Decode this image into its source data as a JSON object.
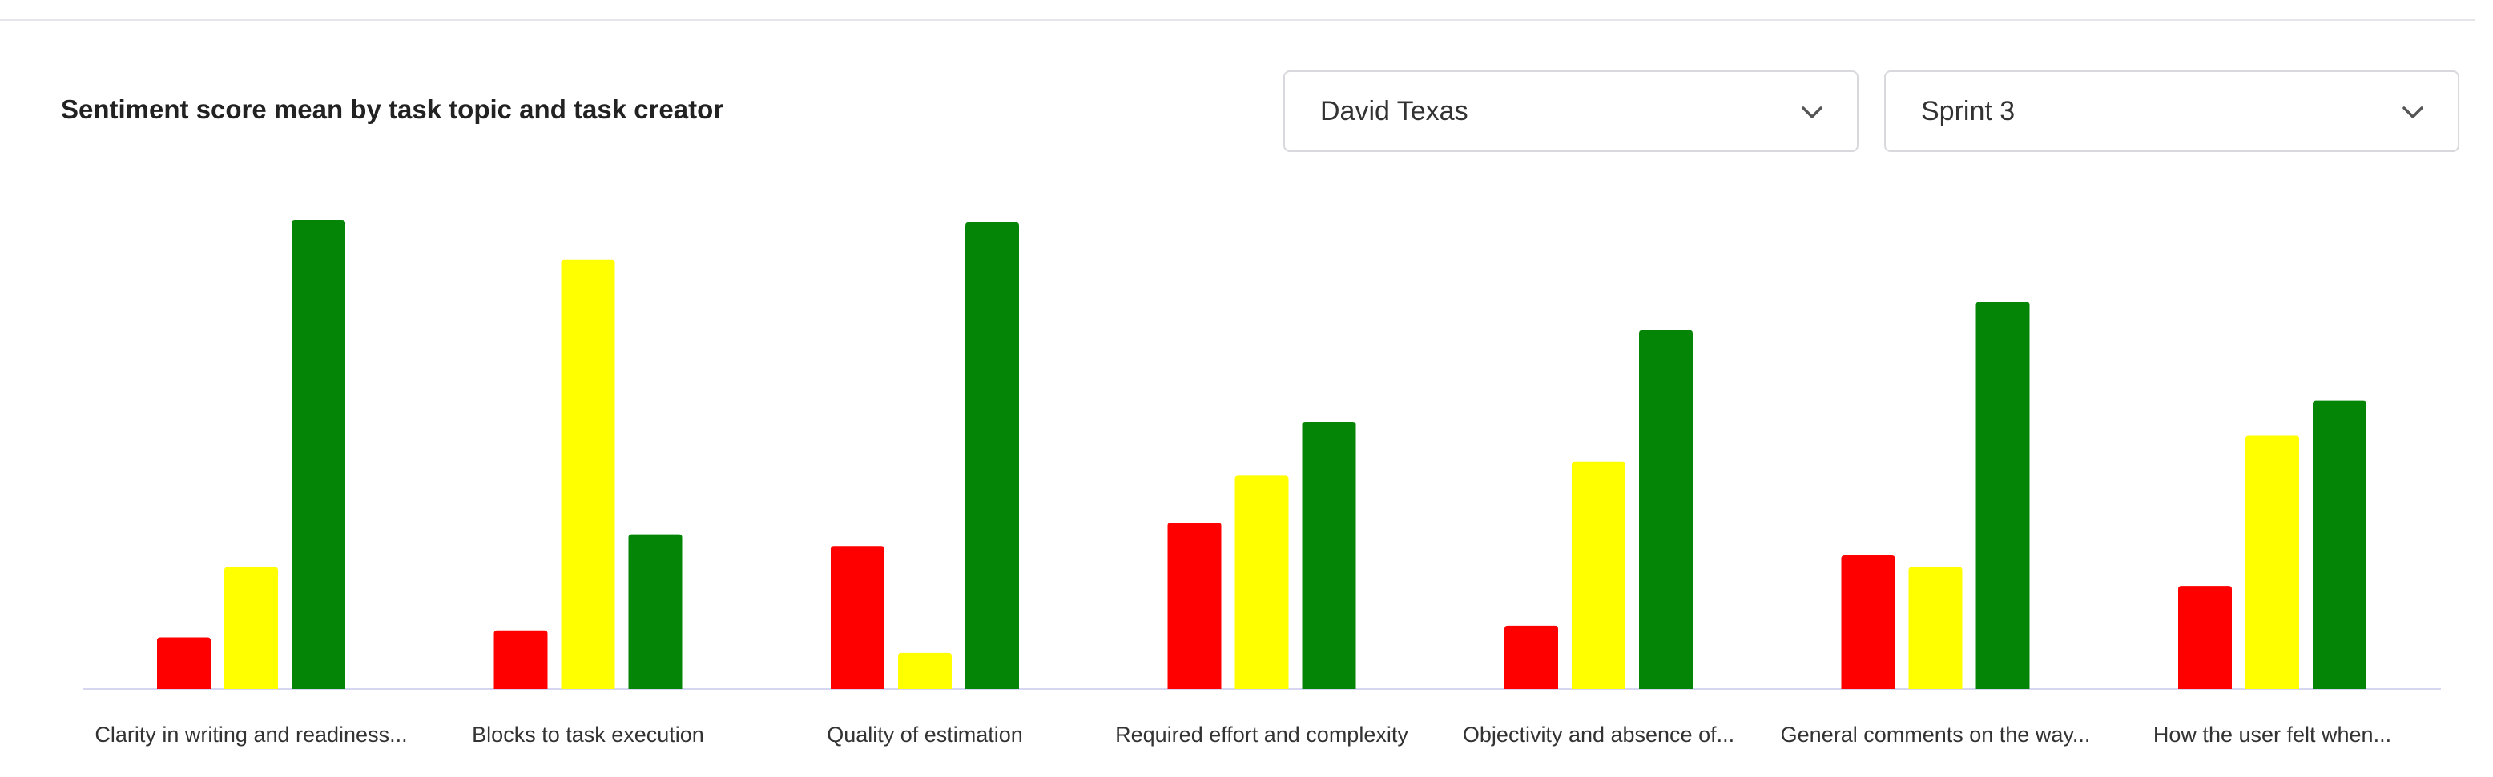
{
  "filters": {
    "creator": {
      "value": "David Texas",
      "icon": "chevron-down-icon"
    },
    "sprint": {
      "value": "Sprint 3",
      "icon": "chevron-down-icon"
    }
  },
  "colors": {
    "negative": "#ff0000",
    "neutral": "#ffff00",
    "positive": "#058505",
    "axis": "#d6d6f0"
  },
  "chart_data": {
    "type": "bar",
    "title": "Sentiment score mean by task topic and task creator",
    "xlabel": "",
    "ylabel": "",
    "ylim": [
      0,
      1
    ],
    "grid": false,
    "legend": "none",
    "categories": [
      "Clarity in writing and readiness...",
      "Blocks to task execution",
      "Quality of estimation",
      "Required effort and complexity",
      "Objectivity and absence of...",
      "General comments on the way...",
      "How the user felt when..."
    ],
    "series": [
      {
        "color": "#ff0000",
        "values": [
          0.11,
          0.125,
          0.305,
          0.355,
          0.135,
          0.285,
          0.22
        ]
      },
      {
        "color": "#ffff00",
        "values": [
          0.26,
          0.915,
          0.077,
          0.455,
          0.485,
          0.26,
          0.54
        ]
      },
      {
        "color": "#058505",
        "values": [
          1.0,
          0.33,
          0.995,
          0.57,
          0.765,
          0.825,
          0.615
        ]
      }
    ]
  }
}
